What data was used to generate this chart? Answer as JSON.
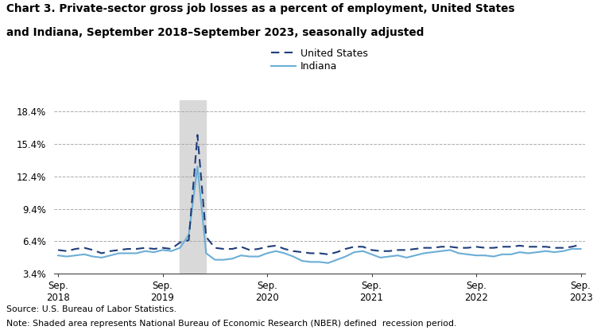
{
  "title_line1": "Chart 3. Private-sector gross job losses as a percent of employment, United States",
  "title_line2_normal": "and Indiana, ",
  "title_line2_bold": "September 2018–September 2023, seasonally adjusted",
  "source": "Source: U.S. Bureau of Labor Statistics.",
  "note": "Note: Shaded area represents National Bureau of Economic Research (NBER) defined  recession period.",
  "recession_start": 14,
  "recession_end": 17,
  "ylim": [
    3.4,
    19.4
  ],
  "yticks": [
    3.4,
    6.4,
    9.4,
    12.4,
    15.4,
    18.4
  ],
  "ytick_labels": [
    "3.4%",
    "6.4%",
    "9.4%",
    "12.4%",
    "15.4%",
    "18.4%"
  ],
  "us_color": "#1f3d7a",
  "in_color": "#6baed6",
  "recession_color": "#d9d9d9",
  "us_data": [
    5.6,
    5.5,
    5.7,
    5.8,
    5.6,
    5.3,
    5.5,
    5.6,
    5.7,
    5.7,
    5.8,
    5.7,
    5.8,
    5.7,
    6.3,
    6.5,
    16.2,
    6.8,
    5.8,
    5.7,
    5.7,
    5.9,
    5.6,
    5.7,
    5.9,
    6.0,
    5.7,
    5.5,
    5.4,
    5.3,
    5.3,
    5.2,
    5.4,
    5.7,
    5.9,
    5.9,
    5.6,
    5.5,
    5.5,
    5.6,
    5.6,
    5.7,
    5.8,
    5.8,
    5.9,
    5.9,
    5.8,
    5.8,
    5.9,
    5.8,
    5.8,
    5.9,
    5.9,
    6.0,
    5.9,
    5.9,
    5.9,
    5.8,
    5.8,
    5.9,
    6.1
  ],
  "in_data": [
    5.1,
    5.0,
    5.1,
    5.2,
    5.0,
    4.9,
    5.1,
    5.3,
    5.3,
    5.3,
    5.5,
    5.4,
    5.6,
    5.5,
    5.8,
    7.0,
    13.3,
    5.3,
    4.7,
    4.7,
    4.8,
    5.1,
    5.0,
    5.0,
    5.3,
    5.5,
    5.3,
    5.0,
    4.6,
    4.5,
    4.5,
    4.4,
    4.7,
    5.0,
    5.4,
    5.5,
    5.2,
    4.9,
    5.0,
    5.1,
    4.9,
    5.1,
    5.3,
    5.4,
    5.5,
    5.6,
    5.3,
    5.2,
    5.1,
    5.1,
    5.0,
    5.2,
    5.2,
    5.4,
    5.3,
    5.4,
    5.5,
    5.4,
    5.5,
    5.7,
    5.7
  ],
  "n_points": 61,
  "xtick_positions": [
    0,
    12,
    24,
    36,
    48,
    60
  ],
  "xtick_labels": [
    "Sep.\n2018",
    "Sep.\n2019",
    "Sep.\n2020",
    "Sep.\n2021",
    "Sep.\n2022",
    "Sep.\n2023"
  ],
  "background_color": "#ffffff",
  "legend_label_us": "United States",
  "legend_label_in": "Indiana"
}
